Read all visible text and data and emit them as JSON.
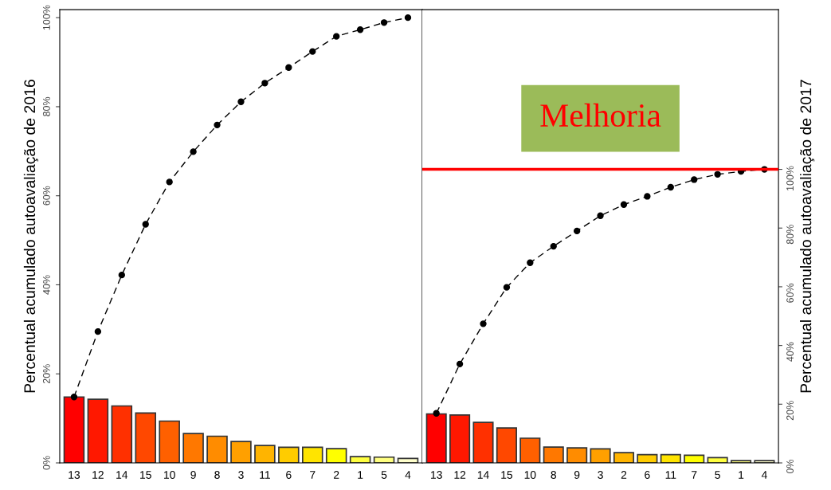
{
  "chart_data": [
    {
      "type": "bar",
      "ylabel": "Percentual acumulado autoavaliação de 2016",
      "categories": [
        "13",
        "12",
        "14",
        "15",
        "10",
        "9",
        "8",
        "3",
        "11",
        "6",
        "7",
        "2",
        "1",
        "5",
        "4"
      ],
      "series": [
        {
          "colors": [
            "#ff0000",
            "#ff1800",
            "#ff3000",
            "#ff4800",
            "#ff6000",
            "#ff7800",
            "#ff8c00",
            "#ffa000",
            "#ffb400",
            "#ffcc00",
            "#ffe400",
            "#ffff00",
            "#ffff40",
            "#ffff80",
            "#ffffcc"
          ],
          "values": [
            14.8,
            14.3,
            12.8,
            11.2,
            9.4,
            6.6,
            6.0,
            4.8,
            3.9,
            3.5,
            3.5,
            3.2,
            1.4,
            1.3,
            1.0
          ]
        },
        {
          "type": "line",
          "color": "#000000",
          "marker": "circle",
          "line_style": "dashed",
          "values": [
            14.8,
            29.5,
            42.2,
            53.6,
            63.1,
            69.9,
            75.9,
            81.1,
            85.3,
            88.8,
            92.4,
            95.8,
            97.3,
            98.9,
            100
          ]
        }
      ],
      "ylim": [
        0,
        101.8
      ],
      "yticks": [
        {
          "value": 0,
          "label": "0%"
        },
        {
          "value": 20,
          "label": "20%"
        },
        {
          "value": 40,
          "label": "40%"
        },
        {
          "value": 60,
          "label": "60%"
        },
        {
          "value": 80,
          "label": "80%"
        },
        {
          "value": 100,
          "label": "100%"
        }
      ],
      "grid": false,
      "legend": false
    },
    {
      "type": "bar",
      "ylabel": "Percentual acumulado autoavaliação de 2017",
      "categories": [
        "13",
        "12",
        "14",
        "15",
        "10",
        "8",
        "9",
        "3",
        "2",
        "6",
        "11",
        "7",
        "5",
        "1",
        "4"
      ],
      "series": [
        {
          "colors": [
            "#ff0000",
            "#ff1800",
            "#ff3000",
            "#ff4800",
            "#ff6000",
            "#ff7800",
            "#ff8c00",
            "#ffa000",
            "#ffb400",
            "#ffcc00",
            "#ffe400",
            "#ffff00",
            "#ffff40",
            "#ffff80",
            "#ffffcc"
          ],
          "values": [
            16.7,
            16.3,
            13.8,
            11.9,
            8.4,
            5.4,
            5.1,
            4.8,
            3.5,
            2.8,
            2.8,
            2.6,
            1.8,
            0.8,
            0.8
          ]
        },
        {
          "type": "line",
          "color": "#000000",
          "marker": "circle",
          "line_style": "dashed",
          "values": [
            16.9,
            33.7,
            47.4,
            59.8,
            68.2,
            73.8,
            79.0,
            84.2,
            88.0,
            90.8,
            93.9,
            96.5,
            98.3,
            99.3,
            100
          ]
        }
      ],
      "ylim": [
        0,
        154.4
      ],
      "yticks": [
        {
          "value": 0,
          "label": "0%"
        },
        {
          "value": 20,
          "label": "20%"
        },
        {
          "value": 40,
          "label": "40%"
        },
        {
          "value": 60,
          "label": "60%"
        },
        {
          "value": 80,
          "label": "80%"
        },
        {
          "value": 100,
          "label": "100%"
        }
      ],
      "ref_lines": [
        {
          "axis": "y",
          "value": 100,
          "color": "#ff0000"
        }
      ],
      "annotations": [
        "Melhoria"
      ],
      "grid": false,
      "legend": false
    }
  ]
}
